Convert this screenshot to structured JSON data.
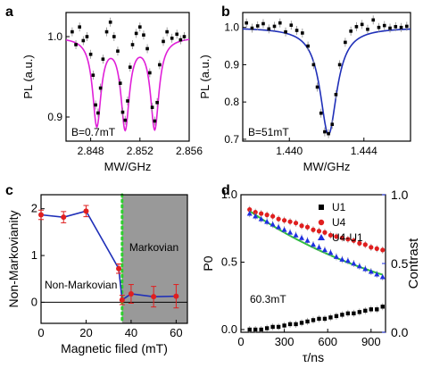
{
  "chart_data": [
    {
      "panel": "a",
      "type": "scatter",
      "xlabel": "MW/GHz",
      "ylabel": "PL (a.u.)",
      "xlim": [
        2.846,
        2.856
      ],
      "ylim": [
        0.87,
        1.03
      ],
      "xticks": [
        2.848,
        2.852,
        2.856
      ],
      "xtick_labels": [
        "2.848",
        "2.852",
        "2.856"
      ],
      "yticks": [
        1.0,
        0.9
      ],
      "ytick_labels": [
        "1.0",
        "0.9"
      ],
      "annotation": "B=0.7mT",
      "fit_color": "#e01fd8",
      "fit": {
        "baseline": 1.0,
        "centers": [
          2.8485,
          2.8508,
          2.8532
        ],
        "depths": [
          0.108,
          0.11,
          0.112
        ],
        "width": 0.00042
      },
      "points": {
        "x": [
          2.8465,
          2.8468,
          2.8471,
          2.8474,
          2.8477,
          2.848,
          2.8482,
          2.8484,
          2.8486,
          2.8488,
          2.849,
          2.8493,
          2.8496,
          2.8499,
          2.8502,
          2.8504,
          2.8506,
          2.8508,
          2.851,
          2.8512,
          2.8514,
          2.8517,
          2.852,
          2.8523,
          2.8526,
          2.8528,
          2.853,
          2.8532,
          2.8534,
          2.8536,
          2.8539,
          2.8542,
          2.8546,
          2.855,
          2.8553,
          2.8556
        ],
        "y": [
          1.006,
          0.99,
          1.012,
          0.995,
          1.0,
          0.978,
          0.952,
          0.915,
          0.905,
          0.936,
          0.972,
          1.006,
          1.018,
          1.0,
          0.982,
          0.942,
          0.906,
          0.896,
          0.92,
          0.962,
          0.99,
          1.004,
          1.012,
          1.002,
          0.985,
          0.955,
          0.912,
          0.895,
          0.918,
          0.965,
          0.994,
          1.006,
          0.998,
          1.003,
          0.996,
          1.0
        ]
      }
    },
    {
      "panel": "b",
      "type": "scatter",
      "xlabel": "MW/GHz",
      "ylabel": "PL (a.u.)",
      "xlim": [
        1.4375,
        1.4465
      ],
      "ylim": [
        0.695,
        1.04
      ],
      "xticks": [
        1.44,
        1.444
      ],
      "xtick_labels": [
        "1.440",
        "1.444"
      ],
      "yticks": [
        1.0,
        0.9,
        0.8,
        0.7
      ],
      "ytick_labels": [
        "1.0",
        "0.9",
        "0.8",
        "0.7"
      ],
      "annotation": "B=51mT",
      "fit_color": "#1f2fb8",
      "fit": {
        "baseline": 1.0,
        "centers": [
          1.4421
        ],
        "depths": [
          0.287
        ],
        "width": 0.00055
      },
      "points": {
        "x": [
          1.4377,
          1.438,
          1.4383,
          1.4386,
          1.4389,
          1.4392,
          1.4395,
          1.4398,
          1.4401,
          1.4404,
          1.4407,
          1.441,
          1.4413,
          1.4415,
          1.4417,
          1.4419,
          1.4421,
          1.4423,
          1.4425,
          1.4427,
          1.443,
          1.4433,
          1.4436,
          1.4439,
          1.4442,
          1.4445,
          1.4448,
          1.4451,
          1.4454,
          1.4457,
          1.446,
          1.4463
        ],
        "y": [
          1.012,
          0.998,
          1.004,
          1.01,
          0.996,
          1.003,
          1.012,
          0.988,
          1.006,
          0.992,
          0.985,
          0.95,
          0.9,
          0.84,
          0.77,
          0.72,
          0.715,
          0.74,
          0.82,
          0.9,
          0.96,
          0.99,
          1.002,
          1.008,
          0.995,
          1.02,
          1.0,
          1.005,
          0.998,
          1.002,
          1.0,
          1.003
        ]
      }
    },
    {
      "panel": "c",
      "type": "line",
      "xlabel": "Magnetic filed (mT)",
      "ylabel": "Non-Markovianity",
      "xlim": [
        0,
        65
      ],
      "ylim": [
        -0.45,
        2.3
      ],
      "xticks": [
        0,
        20,
        40,
        60
      ],
      "xtick_labels": [
        "0",
        "20",
        "40",
        "60"
      ],
      "yticks": [
        0,
        1,
        2
      ],
      "ytick_labels": [
        "0",
        "1",
        "2"
      ],
      "x": [
        0,
        10,
        20,
        34.5,
        36,
        40,
        50,
        60
      ],
      "y": [
        1.87,
        1.82,
        1.95,
        0.72,
        0.05,
        0.18,
        0.12,
        0.13
      ],
      "yerr": [
        0.1,
        0.12,
        0.12,
        0.1,
        0.1,
        0.2,
        0.22,
        0.25
      ],
      "line_color": "#1f2fb8",
      "point_color": "#e01f1f",
      "divider_x": 36,
      "divider_color": "#2fcf2f",
      "shaded_region": [
        36,
        65
      ],
      "shade_color": "#999999",
      "region_labels": [
        "Non-Markovian",
        "Markovian"
      ]
    },
    {
      "panel": "d",
      "type": "scatter",
      "xlabel": "τ/ns",
      "ylabel": "P0",
      "y2label": "Contrast",
      "xlim": [
        0,
        1000
      ],
      "ylim": [
        -0.02,
        1.0
      ],
      "y2lim": [
        0,
        1.0
      ],
      "xticks": [
        0,
        300,
        600,
        900
      ],
      "xtick_labels": [
        "0",
        "300",
        "600",
        "900"
      ],
      "yticks": [
        0,
        0.5,
        1.0
      ],
      "ytick_labels": [
        "0.0",
        "0.5",
        "1.0"
      ],
      "y2ticks": [
        0,
        0.5,
        1.0
      ],
      "y2tick_labels": [
        "0.0",
        "0.5",
        "1.0"
      ],
      "annotation": "60.3mT",
      "legend_position": "top-right",
      "legend": [
        "U1",
        "U4",
        "U4-U1"
      ],
      "series": [
        {
          "name": "U1",
          "marker": "square",
          "color": "#000000",
          "x": [
            60,
            100,
            140,
            180,
            220,
            260,
            300,
            340,
            380,
            420,
            460,
            500,
            540,
            580,
            620,
            660,
            700,
            740,
            780,
            820,
            860,
            900,
            940,
            980
          ],
          "y": [
            0.0,
            0.0,
            0.0,
            0.01,
            0.02,
            0.02,
            0.03,
            0.04,
            0.04,
            0.05,
            0.06,
            0.07,
            0.08,
            0.08,
            0.09,
            0.1,
            0.11,
            0.12,
            0.12,
            0.13,
            0.14,
            0.15,
            0.15,
            0.17
          ]
        },
        {
          "name": "U4",
          "marker": "circle",
          "color": "#e01f1f",
          "x": [
            60,
            100,
            140,
            180,
            220,
            260,
            300,
            340,
            380,
            420,
            460,
            500,
            540,
            580,
            620,
            660,
            700,
            740,
            780,
            820,
            860,
            900,
            940,
            980
          ],
          "y": [
            0.89,
            0.87,
            0.86,
            0.85,
            0.84,
            0.82,
            0.81,
            0.8,
            0.79,
            0.77,
            0.76,
            0.74,
            0.73,
            0.72,
            0.7,
            0.69,
            0.68,
            0.67,
            0.66,
            0.64,
            0.63,
            0.61,
            0.6,
            0.59
          ]
        },
        {
          "name": "U4-U1",
          "marker": "triangle",
          "color": "#1f2fe0",
          "x": [
            60,
            100,
            140,
            180,
            220,
            260,
            300,
            340,
            380,
            420,
            460,
            500,
            540,
            580,
            620,
            660,
            700,
            740,
            780,
            820,
            860,
            900,
            940,
            980
          ],
          "y": [
            0.86,
            0.84,
            0.82,
            0.8,
            0.78,
            0.76,
            0.74,
            0.72,
            0.7,
            0.68,
            0.66,
            0.63,
            0.61,
            0.59,
            0.57,
            0.54,
            0.52,
            0.51,
            0.49,
            0.47,
            0.45,
            0.43,
            0.41,
            0.39
          ]
        }
      ],
      "fit": {
        "color": "#2fbf3f",
        "y0": 0.88,
        "decay": 0.000485
      }
    }
  ],
  "panel_labels": [
    "a",
    "b",
    "c",
    "d"
  ]
}
